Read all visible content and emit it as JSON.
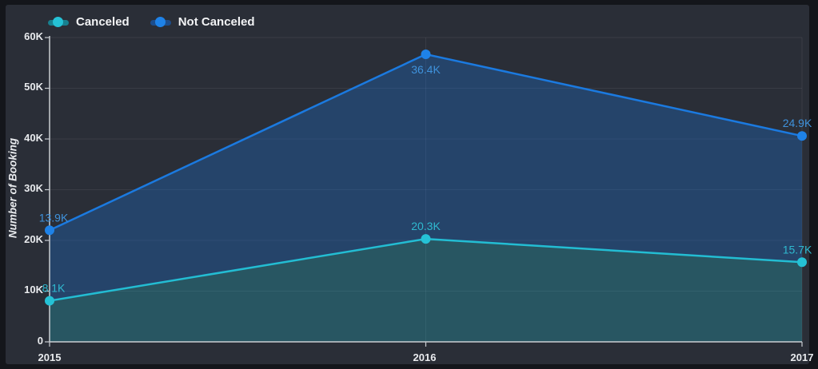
{
  "theme": {
    "frame_bg": "#14161b",
    "panel_bg": "#2a2e37",
    "grid_color": "rgba(255,255,255,0.07)",
    "axis_color": "#c9cdd2",
    "tick_text_color": "#e9ebee",
    "legend_text_color": "#f2f3f5"
  },
  "chart_data": {
    "type": "area",
    "stacked": true,
    "title": "",
    "ylabel": "Number of Booking",
    "x_labels": [
      "2015",
      "2016",
      "2017"
    ],
    "ylim": [
      0,
      60000
    ],
    "grid": true,
    "legend_position": "top-left",
    "y_ticks": [
      {
        "value": 60000,
        "label": "60K"
      },
      {
        "value": 50000,
        "label": "50K"
      },
      {
        "value": 40000,
        "label": "40K"
      },
      {
        "value": 30000,
        "label": "30K"
      },
      {
        "value": 20000,
        "label": "20K"
      },
      {
        "value": 10000,
        "label": "10K"
      },
      {
        "value": 0,
        "label": "0"
      }
    ],
    "series": [
      {
        "name": "Canceled",
        "values": [
          8100,
          20300,
          15700
        ],
        "point_labels": [
          "8.1K",
          "20.3K",
          "15.7K"
        ],
        "line_color": "#23bdd3",
        "point_color": "#25c2d6",
        "area_color": "rgba(35,189,211,0.28)",
        "label_color": "#2fb9cf",
        "legend_bar_color": "#17808f"
      },
      {
        "name": "Not Canceled",
        "values": [
          13900,
          36400,
          24900
        ],
        "point_labels": [
          "13.9K",
          "36.4K",
          "24.9K"
        ],
        "line_color": "#1b7ae0",
        "point_color": "#1e82e8",
        "area_color": "rgba(25,118,225,0.30)",
        "label_color": "#3f92dc",
        "legend_bar_color": "#1c4d8c"
      }
    ]
  }
}
